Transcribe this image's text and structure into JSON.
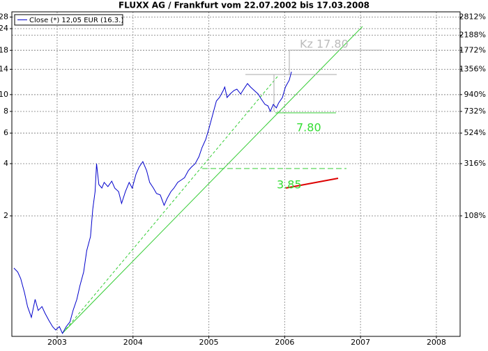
{
  "chart_data": {
    "type": "line",
    "title": "FLUXX AG / Frankfurt vom 22.07.2002 bis 17.03.2008",
    "x": [
      2002.43,
      2002.48,
      2002.52,
      2002.57,
      2002.61,
      2002.66,
      2002.71,
      2002.75,
      2002.8,
      2002.84,
      2002.89,
      2002.94,
      2002.98,
      2003.03,
      2003.07,
      2003.12,
      2003.17,
      2003.21,
      2003.26,
      2003.3,
      2003.35,
      2003.39,
      2003.44,
      2003.47,
      2003.5,
      2003.52,
      2003.55,
      2003.59,
      2003.62,
      2003.67,
      2003.72,
      2003.76,
      2003.81,
      2003.85,
      2003.9,
      2003.95,
      2003.99,
      2004.04,
      2004.08,
      2004.13,
      2004.18,
      2004.22,
      2004.27,
      2004.31,
      2004.36,
      2004.41,
      2004.45,
      2004.5,
      2004.54,
      2004.59,
      2004.64,
      2004.68,
      2004.73,
      2004.77,
      2004.82,
      2004.87,
      2004.91,
      2004.96,
      2005.0,
      2005.05,
      2005.1,
      2005.14,
      2005.19,
      2005.21,
      2005.24,
      2005.28,
      2005.33,
      2005.37,
      2005.42,
      2005.46,
      2005.51,
      2005.55,
      2005.6,
      2005.65,
      2005.69,
      2005.74,
      2005.78,
      2005.81,
      2005.85,
      2005.89,
      2005.92,
      2005.97,
      2006.01,
      2006.06,
      2006.09
    ],
    "series": [
      {
        "name": "Close (*) 12,05 EUR (16.3.)",
        "color": "#0000cc",
        "values": [
          1.0,
          0.95,
          0.87,
          0.72,
          0.6,
          0.52,
          0.66,
          0.57,
          0.6,
          0.55,
          0.5,
          0.46,
          0.44,
          0.46,
          0.42,
          0.46,
          0.49,
          0.57,
          0.66,
          0.79,
          0.95,
          1.26,
          1.52,
          2.19,
          2.76,
          4.0,
          3.03,
          2.89,
          3.12,
          2.95,
          3.17,
          2.89,
          2.76,
          2.36,
          2.76,
          3.12,
          2.89,
          3.48,
          3.82,
          4.11,
          3.65,
          3.12,
          2.89,
          2.69,
          2.64,
          2.3,
          2.52,
          2.76,
          2.89,
          3.12,
          3.23,
          3.32,
          3.65,
          3.82,
          4.0,
          4.39,
          4.95,
          5.53,
          6.35,
          7.64,
          9.19,
          9.62,
          10.56,
          11.06,
          9.62,
          10.08,
          10.56,
          10.75,
          10.08,
          10.75,
          11.58,
          11.06,
          10.56,
          10.08,
          9.45,
          8.78,
          8.61,
          8.0,
          8.78,
          8.38,
          8.94,
          9.62,
          11.06,
          12.12,
          13.55
        ]
      }
    ],
    "xlim": [
      2002.403,
      2008.313
    ],
    "xticks": [
      2003,
      2004,
      2005,
      2006,
      2007,
      2008
    ],
    "ylim": [
      0.404,
      30
    ],
    "yticks": [
      2,
      4,
      6,
      8,
      10,
      14,
      18,
      24,
      28
    ],
    "y2lim": [
      -58,
      3020
    ],
    "y2ticks": [
      {
        "value": 108,
        "label": "108%"
      },
      {
        "value": 316,
        "label": "316%"
      },
      {
        "value": 524,
        "label": "524%"
      },
      {
        "value": 732,
        "label": "732%"
      },
      {
        "value": 940,
        "label": "940%"
      },
      {
        "value": 1356,
        "label": "1356%"
      },
      {
        "value": 1772,
        "label": "1772%"
      },
      {
        "value": 2188,
        "label": "2188%"
      },
      {
        "value": 2812,
        "label": "2812%"
      }
    ],
    "log_scale": true,
    "grid": true,
    "annotations": [
      "Kz 17.80",
      "7.80",
      "3.85"
    ]
  }
}
